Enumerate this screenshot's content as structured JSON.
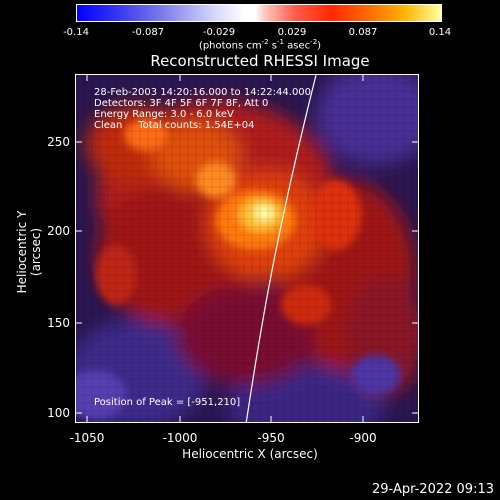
{
  "colorbar": {
    "ticks": [
      "-0.14",
      "-0.087",
      "-0.029",
      "0.029",
      "0.087",
      "0.14"
    ],
    "units_main": "(photons cm",
    "units_sup1": "-2",
    "units_mid": " s",
    "units_sup2": "-1",
    "units_end": " asec",
    "units_sup3": "-2",
    "units_close": ")"
  },
  "title": "Reconstructed RHESSI Image",
  "info": {
    "time": "28-Feb-2003 14:20:16.000 to 14:22:44.000",
    "detectors": "Detectors: 3F 4F 5F 6F 7F 8F, Att 0",
    "energy": "Energy Range: 3.0 - 6.0 keV",
    "clean": "Clean     Total counts: 1.54E+04",
    "peak": "Position of Peak = [-951,210]"
  },
  "axes": {
    "xlabel": "Heliocentric X (arcsec)",
    "ylabel": "Heliocentric Y (arcsec)",
    "xticks": [
      "-1050",
      "-1000",
      "-950",
      "-900"
    ],
    "yticks": [
      "250",
      "200",
      "150",
      "100"
    ]
  },
  "timestamp": "29-Apr-2022 09:13"
}
